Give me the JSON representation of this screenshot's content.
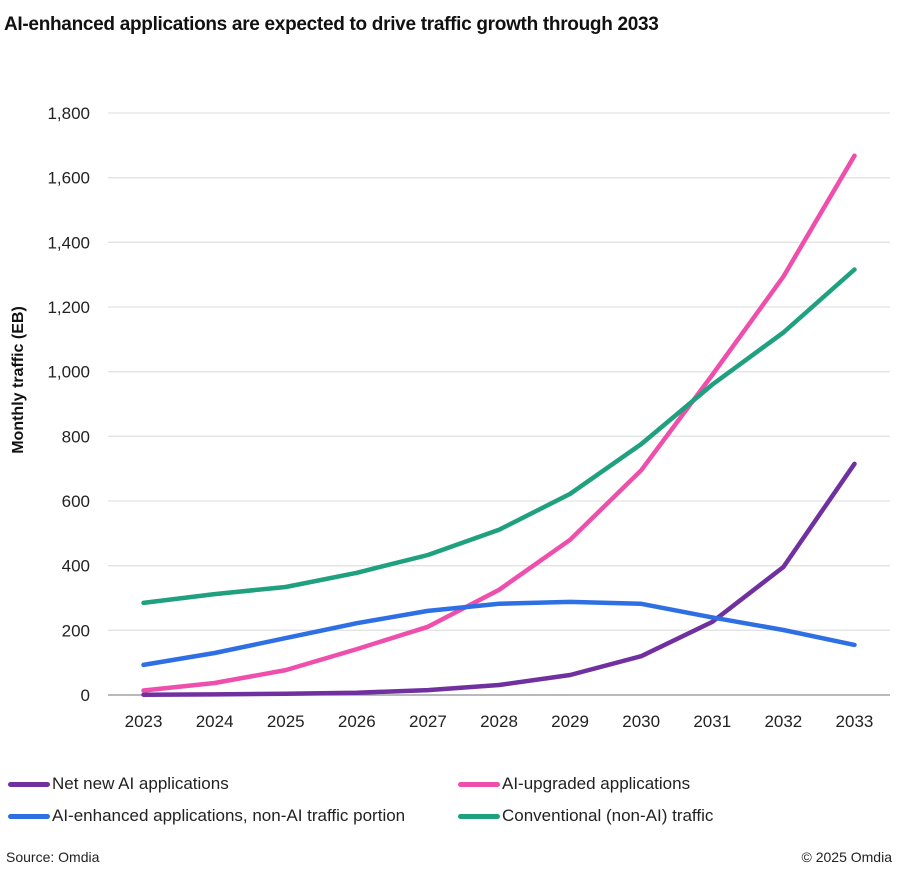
{
  "chart_data": {
    "type": "line",
    "title": "AI-enhanced applications are expected to drive traffic growth through 2033",
    "xlabel": "",
    "ylabel": "Monthly traffic (EB)",
    "ylim": [
      0,
      1800
    ],
    "yticks": [
      0,
      200,
      400,
      600,
      800,
      1000,
      1200,
      1400,
      1600,
      1800
    ],
    "ytick_labels": [
      "0",
      "200",
      "400",
      "600",
      "800",
      "1,000",
      "1,200",
      "1,400",
      "1,600",
      "1,800"
    ],
    "grid": true,
    "legend_position": "bottom",
    "x": [
      "2023",
      "2024",
      "2025",
      "2026",
      "2027",
      "2028",
      "2029",
      "2030",
      "2031",
      "2032",
      "2033"
    ],
    "series": [
      {
        "name": "Net new AI applications",
        "color": "#7030A0",
        "values": [
          1,
          2,
          4,
          7,
          15,
          31,
          62,
          120,
          226,
          396,
          715
        ]
      },
      {
        "name": "AI-upgraded applications",
        "color": "#EE4FAD",
        "values": [
          14,
          37,
          77,
          142,
          211,
          325,
          480,
          695,
          990,
          1294,
          1668
        ]
      },
      {
        "name": "AI-enhanced applications, non-AI traffic portion",
        "color": "#2F6FE4",
        "values": [
          93,
          130,
          176,
          222,
          260,
          282,
          288,
          282,
          240,
          201,
          155
        ]
      },
      {
        "name": "Conventional (non-AI) traffic",
        "color": "#1FA07F",
        "values": [
          285,
          312,
          334,
          378,
          433,
          511,
          622,
          776,
          960,
          1121,
          1316
        ]
      }
    ]
  },
  "footer": {
    "source": "Source: Omdia",
    "copyright": "© 2025 Omdia"
  }
}
